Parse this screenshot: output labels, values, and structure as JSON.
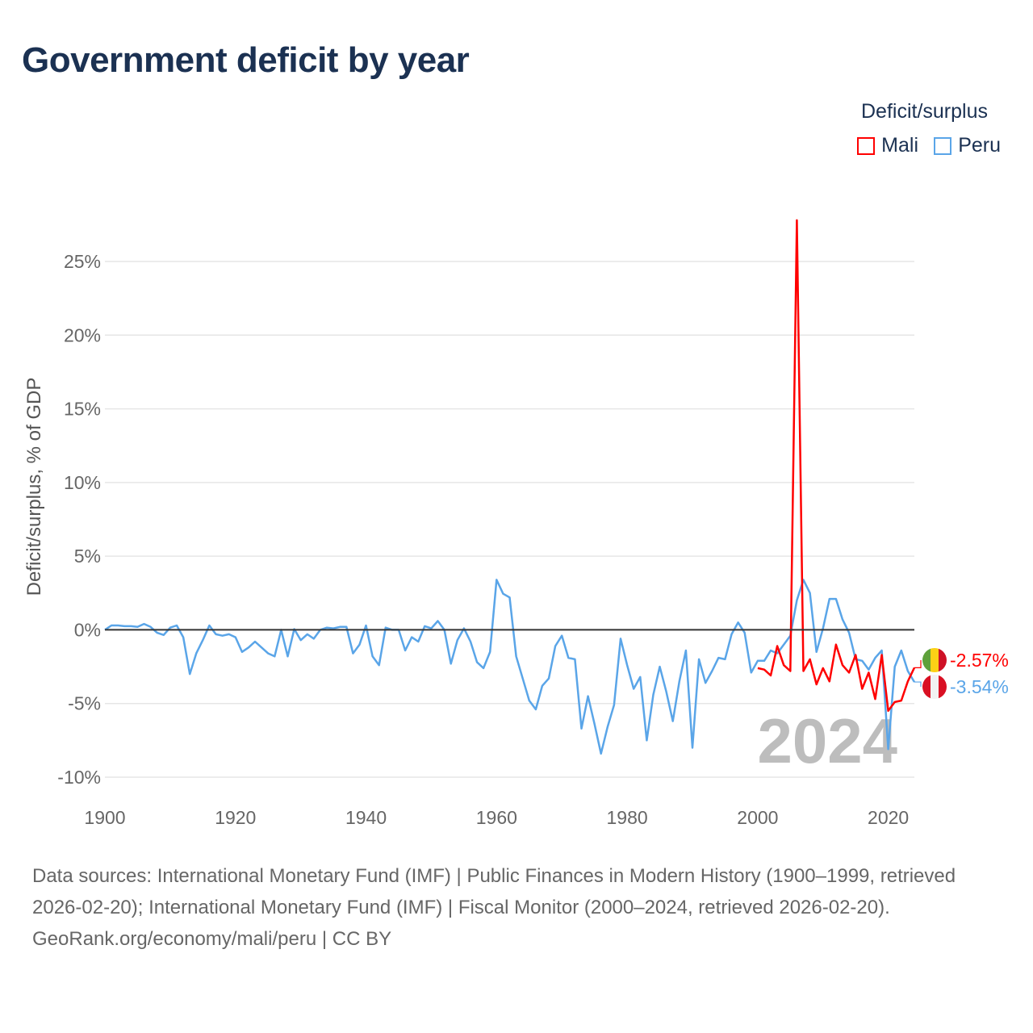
{
  "title": "Government deficit by year",
  "legend": {
    "title": "Deficit/surplus",
    "entries": [
      {
        "name": "Mali",
        "color": "#ff0000"
      },
      {
        "name": "Peru",
        "color": "#5aa5e8"
      }
    ]
  },
  "footer": {
    "sources": "Data sources: International Monetary Fund (IMF) | Public Finances in Modern History (1900–1999, retrieved 2026-02-20); International Monetary Fund (IMF) | Fiscal Monitor (2000–2024, retrieved 2026-02-20).",
    "credit": "GeoRank.org/economy/mali/peru | CC BY"
  },
  "chart_data": {
    "type": "line",
    "title": "Government deficit by year",
    "xlabel": "",
    "ylabel": "Deficit/surplus, % of GDP",
    "xlim": [
      1900,
      2024
    ],
    "ylim": [
      -10,
      25
    ],
    "xticks": [
      1900,
      1920,
      1940,
      1960,
      1980,
      2000,
      2020
    ],
    "xtick_labels": [
      "1900",
      "1920",
      "1940",
      "1960",
      "1980",
      "2000",
      "2020"
    ],
    "yticks": [
      -10,
      -5,
      0,
      5,
      10,
      15,
      20,
      25
    ],
    "ytick_labels": [
      "-10%",
      "-5%",
      "0%",
      "5%",
      "10%",
      "15%",
      "20%",
      "25%"
    ],
    "grid": true,
    "legend_position": "top-right",
    "year_label": "2024",
    "series": [
      {
        "name": "Mali",
        "color": "#ff0000",
        "start_year": 2000,
        "end_label": "-2.57%",
        "flag": "mali-flag",
        "values": [
          -2.6,
          -2.7,
          -3.1,
          -1.1,
          -2.4,
          -2.8,
          27.8,
          -2.8,
          -2.0,
          -3.7,
          -2.6,
          -3.5,
          -1.0,
          -2.4,
          -2.9,
          -1.7,
          -4.0,
          -2.9,
          -4.7,
          -1.7,
          -5.5,
          -4.9,
          -4.8,
          -3.5,
          -2.57
        ]
      },
      {
        "name": "Peru",
        "color": "#5aa5e8",
        "start_year": 1900,
        "end_label": "-3.54%",
        "flag": "peru-flag",
        "values": [
          0,
          0.3,
          0.3,
          0.25,
          0.25,
          0.2,
          0.4,
          0.2,
          -0.2,
          -0.35,
          0.15,
          0.3,
          -0.5,
          -3.0,
          -1.6,
          -0.7,
          0.3,
          -0.3,
          -0.4,
          -0.3,
          -0.5,
          -1.5,
          -1.2,
          -0.8,
          -1.2,
          -1.6,
          -1.8,
          0,
          -1.8,
          0.05,
          -0.7,
          -0.3,
          -0.6,
          0,
          0.15,
          0.1,
          0.2,
          0.2,
          -1.6,
          -1.0,
          0.3,
          -1.8,
          -2.4,
          0.15,
          0,
          0,
          -1.4,
          -0.5,
          -0.8,
          0.25,
          0.1,
          0.6,
          0,
          -2.3,
          -0.7,
          0.1,
          -0.8,
          -2.2,
          -2.6,
          -1.5,
          3.4,
          2.45,
          2.2,
          -1.8,
          -3.3,
          -4.8,
          -5.4,
          -3.8,
          -3.3,
          -1.1,
          -0.4,
          -1.9,
          -2.0,
          -6.7,
          -4.5,
          -6.4,
          -8.4,
          -6.6,
          -5.1,
          -0.6,
          -2.4,
          -4.0,
          -3.2,
          -7.5,
          -4.4,
          -2.5,
          -4.2,
          -6.2,
          -3.5,
          -1.4,
          -8.0,
          -2.0,
          -3.6,
          -2.8,
          -1.9,
          -2.0,
          -0.3,
          0.5,
          -0.2,
          -2.9,
          -2.1,
          -2.1,
          -1.4,
          -1.6,
          -1.0,
          -0.4,
          2.0,
          3.4,
          2.5,
          -1.5,
          0.1,
          2.1,
          2.1,
          0.7,
          -0.2,
          -2.0,
          -2.1,
          -2.7,
          -1.9,
          -1.4,
          -8.1,
          -2.5,
          -1.4,
          -2.8,
          -3.54
        ]
      }
    ]
  }
}
